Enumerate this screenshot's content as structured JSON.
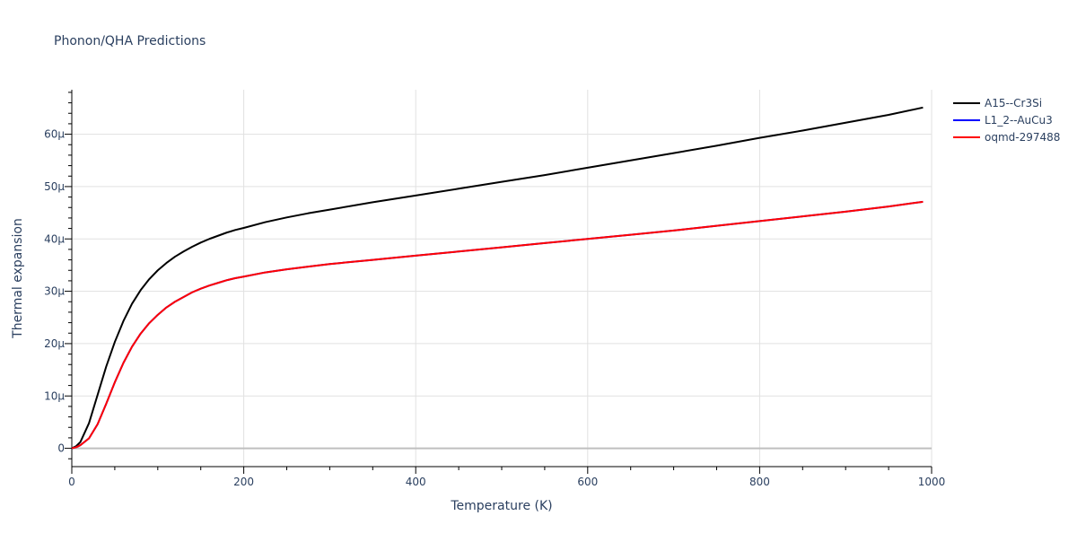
{
  "chart_data": {
    "type": "line",
    "title": "Phonon/QHA Predictions",
    "xlabel": "Temperature (K)",
    "ylabel": "Thermal expansion",
    "xlim": [
      0,
      1000
    ],
    "ylim": [
      -3.5,
      68.5
    ],
    "x_ticks": [
      0,
      200,
      400,
      600,
      800,
      1000
    ],
    "x_tick_labels": [
      "0",
      "200",
      "400",
      "600",
      "800",
      "1000"
    ],
    "y_ticks": [
      0,
      10,
      20,
      30,
      40,
      50,
      60
    ],
    "y_tick_labels": [
      "0",
      "10μ",
      "20μ",
      "30μ",
      "40μ",
      "50μ",
      "60μ"
    ],
    "y_unit": "μ",
    "grid": true,
    "legend_position": "top-right",
    "series": [
      {
        "name": "A15--Cr3Si",
        "color": "#000000",
        "x": [
          0,
          5,
          10,
          20,
          30,
          40,
          50,
          60,
          70,
          80,
          90,
          100,
          110,
          120,
          130,
          140,
          150,
          160,
          170,
          180,
          190,
          200,
          225,
          250,
          275,
          300,
          350,
          400,
          450,
          500,
          550,
          600,
          650,
          700,
          750,
          800,
          850,
          900,
          950,
          990
        ],
        "y": [
          0,
          0.4,
          1.2,
          4.8,
          10.2,
          15.6,
          20.3,
          24.3,
          27.6,
          30.2,
          32.3,
          34.0,
          35.4,
          36.6,
          37.6,
          38.5,
          39.3,
          40.0,
          40.6,
          41.2,
          41.7,
          42.1,
          43.2,
          44.1,
          44.9,
          45.6,
          47.0,
          48.3,
          49.6,
          50.9,
          52.2,
          53.6,
          55.0,
          56.4,
          57.8,
          59.3,
          60.7,
          62.2,
          63.7,
          65.1
        ]
      },
      {
        "name": "L1_2--AuCu3",
        "color": "#0000ff",
        "x": [
          0,
          5,
          10,
          20,
          30,
          40,
          50,
          60,
          70,
          80,
          90,
          100,
          110,
          120,
          130,
          140,
          150,
          160,
          170,
          180,
          190,
          200,
          225,
          250,
          275,
          300,
          350,
          400,
          450,
          500,
          550,
          600,
          650,
          700,
          750,
          800,
          850,
          900,
          950,
          990
        ],
        "y": [
          0,
          0.2,
          0.6,
          1.9,
          4.6,
          8.5,
          12.6,
          16.3,
          19.4,
          21.9,
          23.9,
          25.5,
          26.9,
          28.0,
          28.9,
          29.8,
          30.5,
          31.1,
          31.6,
          32.1,
          32.5,
          32.8,
          33.6,
          34.2,
          34.7,
          35.2,
          36.0,
          36.8,
          37.6,
          38.4,
          39.2,
          40.0,
          40.8,
          41.6,
          42.5,
          43.4,
          44.3,
          45.2,
          46.2,
          47.1
        ]
      },
      {
        "name": "oqmd-297488",
        "color": "#ff0000",
        "x": [
          0,
          5,
          10,
          20,
          30,
          40,
          50,
          60,
          70,
          80,
          90,
          100,
          110,
          120,
          130,
          140,
          150,
          160,
          170,
          180,
          190,
          200,
          225,
          250,
          275,
          300,
          350,
          400,
          450,
          500,
          550,
          600,
          650,
          700,
          750,
          800,
          850,
          900,
          950,
          990
        ],
        "y": [
          0,
          0.2,
          0.6,
          1.9,
          4.6,
          8.5,
          12.6,
          16.3,
          19.4,
          21.9,
          23.9,
          25.5,
          26.9,
          28.0,
          28.9,
          29.8,
          30.5,
          31.1,
          31.6,
          32.1,
          32.5,
          32.8,
          33.6,
          34.2,
          34.7,
          35.2,
          36.0,
          36.8,
          37.6,
          38.4,
          39.2,
          40.0,
          40.8,
          41.6,
          42.5,
          43.4,
          44.3,
          45.2,
          46.2,
          47.1
        ]
      }
    ]
  }
}
